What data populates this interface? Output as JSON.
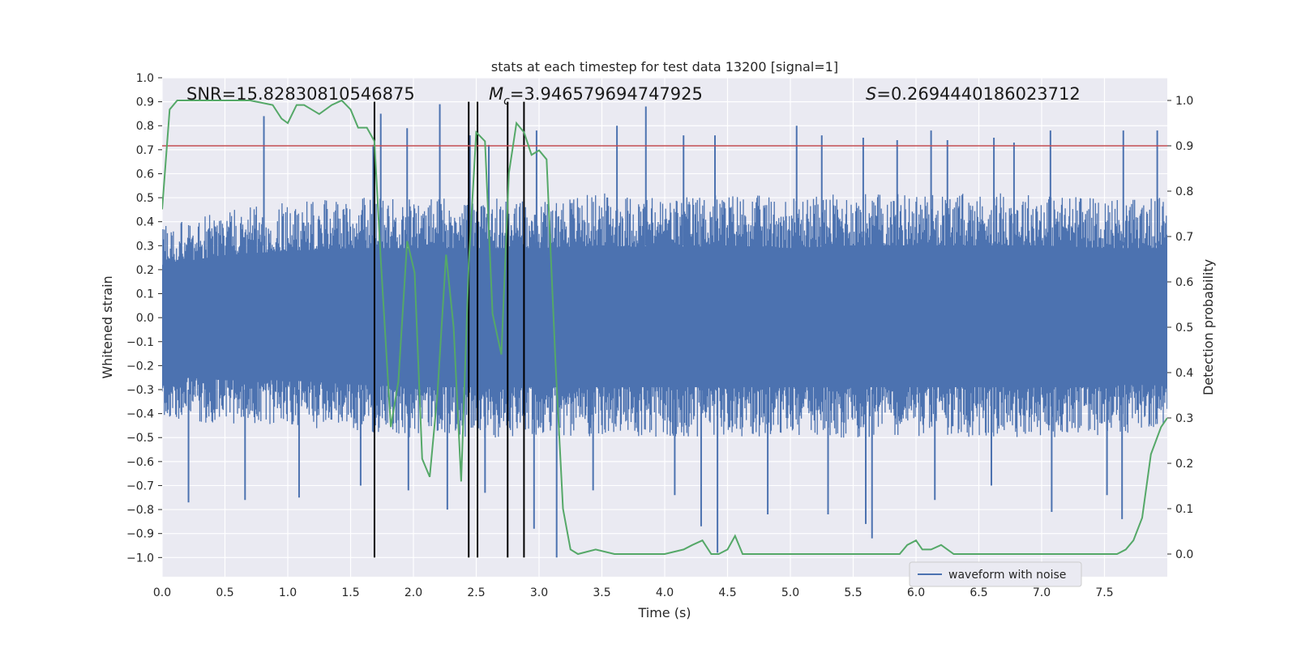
{
  "chart_data": {
    "type": "line",
    "title": "stats at each timestep for test data 13200 [signal=1]",
    "xlabel": "Time (s)",
    "ylabel_left": "Whitened strain",
    "ylabel_right": "Detection probability",
    "xlim": [
      0,
      8
    ],
    "ylim_left": [
      -1.08,
      1.0
    ],
    "ylim_right": [
      -0.05,
      1.05
    ],
    "x_ticks": [
      "0.0",
      "0.5",
      "1.0",
      "1.5",
      "2.0",
      "2.5",
      "3.0",
      "3.5",
      "4.0",
      "4.5",
      "5.0",
      "5.5",
      "6.0",
      "6.5",
      "7.0",
      "7.5"
    ],
    "x_tick_values": [
      0,
      0.5,
      1,
      1.5,
      2,
      2.5,
      3,
      3.5,
      4,
      4.5,
      5,
      5.5,
      6,
      6.5,
      7,
      7.5
    ],
    "y_left_ticks": [
      "1.0",
      "0.9",
      "0.8",
      "0.7",
      "0.6",
      "0.5",
      "0.4",
      "0.3",
      "0.2",
      "0.1",
      "0.0",
      "−0.1",
      "−0.2",
      "−0.3",
      "−0.4",
      "−0.5",
      "−0.6",
      "−0.7",
      "−0.8",
      "−0.9",
      "−1.0"
    ],
    "y_left_tick_values": [
      1.0,
      0.9,
      0.8,
      0.7,
      0.6,
      0.5,
      0.4,
      0.3,
      0.2,
      0.1,
      0.0,
      -0.1,
      -0.2,
      -0.3,
      -0.4,
      -0.5,
      -0.6,
      -0.7,
      -0.8,
      -0.9,
      -1.0
    ],
    "y_right_ticks": [
      "1.0",
      "0.9",
      "0.8",
      "0.7",
      "0.6",
      "0.5",
      "0.4",
      "0.3",
      "0.2",
      "0.1",
      "0.0"
    ],
    "y_right_tick_values": [
      1.0,
      0.9,
      0.8,
      0.7,
      0.6,
      0.5,
      0.4,
      0.3,
      0.2,
      0.1,
      0.0
    ],
    "grid": true,
    "background_color": "#eaeaf2",
    "annotations": {
      "snr": "SNR=15.82830810546875",
      "mc_symbol": "M",
      "mc_subscript": "c",
      "mc_value": "=3.946579694747925",
      "s_symbol": "S",
      "s_value": "=0.2694440186023712"
    },
    "threshold": {
      "value": 0.9,
      "axis": "right",
      "color": "#c44e52"
    },
    "vertical_lines": {
      "x": [
        1.69,
        2.44,
        2.51,
        2.75,
        2.88
      ],
      "y_range": [
        -1.0,
        0.9
      ],
      "color": "#000000"
    },
    "series": [
      {
        "name": "waveform with noise",
        "color": "#4c72b0",
        "axis": "left",
        "envelope_upper": [
          [
            0.0,
            0.38
          ],
          [
            0.5,
            0.45
          ],
          [
            1.0,
            0.48
          ],
          [
            1.5,
            0.5
          ],
          [
            2.0,
            0.5
          ],
          [
            2.5,
            0.5
          ],
          [
            3.0,
            0.5
          ],
          [
            3.5,
            0.52
          ],
          [
            4.0,
            0.5
          ],
          [
            4.5,
            0.52
          ],
          [
            5.0,
            0.5
          ],
          [
            5.5,
            0.52
          ],
          [
            6.0,
            0.52
          ],
          [
            6.5,
            0.52
          ],
          [
            7.0,
            0.52
          ],
          [
            7.5,
            0.5
          ],
          [
            8.0,
            0.5
          ]
        ],
        "envelope_lower": [
          [
            0.0,
            -0.42
          ],
          [
            0.5,
            -0.45
          ],
          [
            1.0,
            -0.45
          ],
          [
            1.5,
            -0.48
          ],
          [
            2.0,
            -0.5
          ],
          [
            2.5,
            -0.5
          ],
          [
            3.0,
            -0.5
          ],
          [
            3.5,
            -0.5
          ],
          [
            4.0,
            -0.5
          ],
          [
            4.5,
            -0.5
          ],
          [
            5.0,
            -0.5
          ],
          [
            5.5,
            -0.5
          ],
          [
            6.0,
            -0.5
          ],
          [
            6.5,
            -0.5
          ],
          [
            7.0,
            -0.5
          ],
          [
            7.5,
            -0.5
          ],
          [
            8.0,
            -0.45
          ]
        ],
        "spikes_up": [
          [
            0.81,
            0.84
          ],
          [
            1.68,
            0.72
          ],
          [
            1.74,
            0.85
          ],
          [
            1.95,
            0.79
          ],
          [
            2.21,
            0.89
          ],
          [
            2.45,
            0.76
          ],
          [
            2.6,
            0.72
          ],
          [
            2.98,
            0.78
          ],
          [
            3.62,
            0.8
          ],
          [
            3.85,
            0.88
          ],
          [
            4.15,
            0.76
          ],
          [
            4.4,
            0.76
          ],
          [
            5.05,
            0.8
          ],
          [
            5.25,
            0.76
          ],
          [
            5.58,
            0.75
          ],
          [
            5.85,
            0.74
          ],
          [
            6.12,
            0.78
          ],
          [
            6.25,
            0.74
          ],
          [
            6.62,
            0.75
          ],
          [
            6.78,
            0.73
          ],
          [
            7.07,
            0.78
          ],
          [
            7.65,
            0.78
          ],
          [
            7.92,
            0.78
          ]
        ],
        "spikes_down": [
          [
            0.21,
            -0.77
          ],
          [
            0.66,
            -0.76
          ],
          [
            1.09,
            -0.75
          ],
          [
            1.58,
            -0.7
          ],
          [
            1.96,
            -0.72
          ],
          [
            2.27,
            -0.8
          ],
          [
            2.57,
            -0.73
          ],
          [
            2.96,
            -0.88
          ],
          [
            3.14,
            -1.0
          ],
          [
            3.43,
            -0.72
          ],
          [
            4.08,
            -0.74
          ],
          [
            4.29,
            -0.87
          ],
          [
            4.42,
            -0.98
          ],
          [
            4.82,
            -0.82
          ],
          [
            5.3,
            -0.82
          ],
          [
            5.6,
            -0.86
          ],
          [
            5.65,
            -0.92
          ],
          [
            6.15,
            -0.76
          ],
          [
            6.6,
            -0.7
          ],
          [
            7.08,
            -0.81
          ],
          [
            7.52,
            -0.74
          ],
          [
            7.64,
            -0.84
          ]
        ]
      },
      {
        "name": "Detection probability",
        "color": "#55a868",
        "axis": "right",
        "x": [
          0.0,
          0.06,
          0.12,
          0.2,
          0.3,
          0.5,
          0.7,
          0.88,
          0.95,
          1.0,
          1.07,
          1.13,
          1.25,
          1.35,
          1.43,
          1.5,
          1.56,
          1.63,
          1.69,
          1.74,
          1.82,
          1.88,
          1.95,
          2.01,
          2.07,
          2.13,
          2.19,
          2.26,
          2.32,
          2.38,
          2.44,
          2.5,
          2.57,
          2.63,
          2.7,
          2.76,
          2.82,
          2.88,
          2.94,
          3.0,
          3.06,
          3.13,
          3.19,
          3.25,
          3.31,
          3.45,
          3.6,
          3.8,
          4.0,
          4.15,
          4.22,
          4.3,
          4.37,
          4.43,
          4.5,
          4.56,
          4.62,
          4.68,
          4.8,
          5.0,
          5.2,
          5.5,
          5.8,
          5.87,
          5.93,
          6.0,
          6.05,
          6.12,
          6.2,
          6.3,
          6.5,
          6.8,
          7.0,
          7.3,
          7.6,
          7.67,
          7.73,
          7.8,
          7.87,
          7.95,
          8.0
        ],
        "y": [
          0.76,
          0.98,
          1.0,
          1.0,
          1.0,
          1.0,
          1.0,
          0.99,
          0.96,
          0.95,
          0.99,
          0.99,
          0.97,
          0.99,
          1.0,
          0.98,
          0.94,
          0.94,
          0.91,
          0.65,
          0.28,
          0.38,
          0.69,
          0.62,
          0.21,
          0.17,
          0.35,
          0.66,
          0.5,
          0.16,
          0.64,
          0.93,
          0.91,
          0.53,
          0.44,
          0.84,
          0.95,
          0.93,
          0.88,
          0.89,
          0.87,
          0.43,
          0.1,
          0.01,
          0.0,
          0.01,
          0.0,
          0.0,
          0.0,
          0.01,
          0.02,
          0.03,
          0.0,
          0.0,
          0.01,
          0.04,
          0.0,
          0.0,
          0.0,
          0.0,
          0.0,
          0.0,
          0.0,
          0.0,
          0.02,
          0.03,
          0.01,
          0.01,
          0.02,
          0.0,
          0.0,
          0.0,
          0.0,
          0.0,
          0.0,
          0.01,
          0.03,
          0.08,
          0.22,
          0.28,
          0.3
        ]
      }
    ],
    "legend": {
      "position": "lower-right",
      "entries": [
        "waveform with noise"
      ]
    }
  }
}
